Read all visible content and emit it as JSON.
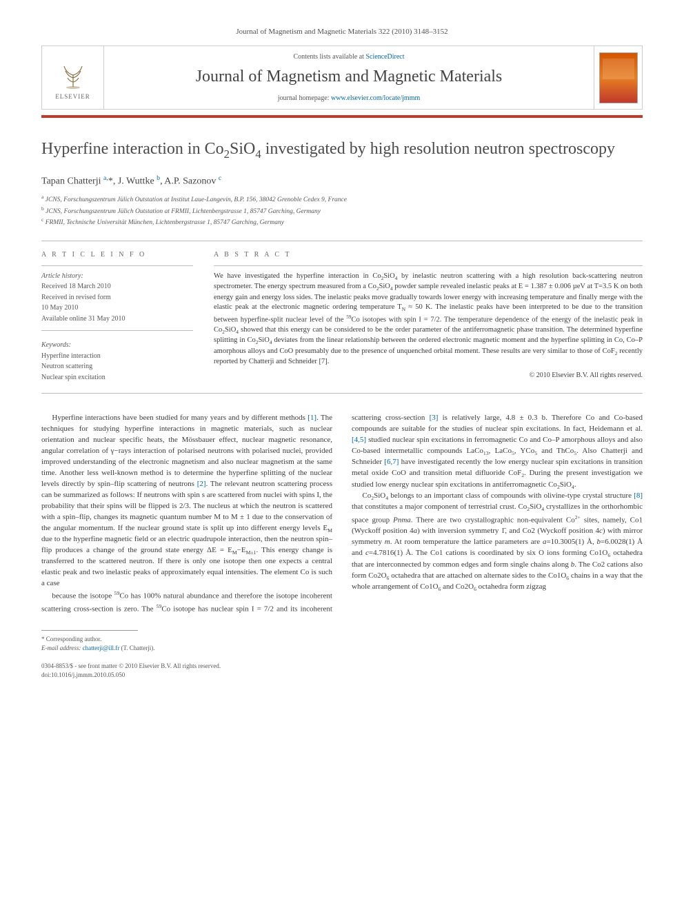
{
  "header": {
    "journal_ref": "Journal of Magnetism and Magnetic Materials 322 (2010) 3148–3152",
    "contents_prefix": "Contents lists available at ",
    "contents_link": "ScienceDirect",
    "journal_title": "Journal of Magnetism and Magnetic Materials",
    "homepage_prefix": "journal homepage: ",
    "homepage_url": "www.elsevier.com/locate/jmmm",
    "elsevier_label": "ELSEVIER"
  },
  "article": {
    "title_html": "Hyperfine interaction in Co<span class='sub'>2</span>SiO<span class='sub'>4</span> investigated by high resolution neutron spectroscopy",
    "authors_html": "Tapan Chatterji <span class='aff'>a,</span>*, J. Wuttke <span class='aff'>b</span>, A.P. Sazonov <span class='aff'>c</span>",
    "affiliations": [
      {
        "lbl": "a",
        "text": "JCNS, Forschungszentrum Jülich Outstation at Institut Laue-Langevin, B.P. 156, 38042 Grenoble Cedex 9, France"
      },
      {
        "lbl": "b",
        "text": "JCNS, Forschungszentrum Jülich Outstation at FRMII, Lichtenbergstrasse 1, 85747 Garching, Germany"
      },
      {
        "lbl": "c",
        "text": "FRMII, Technische Universität München, Lichtenbergstrasse 1, 85747 Garching, Germany"
      }
    ]
  },
  "meta": {
    "info_head": "A R T I C L E  I N F O",
    "history_head": "Article history:",
    "history": [
      "Received 18 March 2010",
      "Received in revised form",
      "10 May 2010",
      "Available online 31 May 2010"
    ],
    "keywords_head": "Keywords:",
    "keywords": [
      "Hyperfine interaction",
      "Neutron scattering",
      "Nuclear spin excitation"
    ]
  },
  "abstract": {
    "head": "A B S T R A C T",
    "text_html": "We have investigated the hyperfine interaction in Co<span class='sub'>2</span>SiO<span class='sub'>4</span> by inelastic neutron scattering with a high resolution back-scattering neutron spectrometer. The energy spectrum measured from a Co<span class='sub'>2</span>SiO<span class='sub'>4</span> powder sample revealed inelastic peaks at E = 1.387 ± 0.006 µeV at T=3.5 K on both energy gain and energy loss sides. The inelastic peaks move gradually towards lower energy with increasing temperature and finally merge with the elastic peak at the electronic magnetic ordering temperature T<span class='sub'>N</span> ≈ 50 K. The inelastic peaks have been interpreted to be due to the transition between hyperfine-split nuclear level of the <span class='sup'>59</span>Co isotopes with spin I = 7/2. The temperature dependence of the energy of the inelastic peak in Co<span class='sub'>2</span>SiO<span class='sub'>4</span> showed that this energy can be considered to be the order parameter of the antiferromagnetic phase transition. The determined hyperfine splitting in Co<span class='sub'>2</span>SiO<span class='sub'>4</span> deviates from the linear relationship between the ordered electronic magnetic moment and the hyperfine splitting in Co, Co–P amorphous alloys and CoO presumably due to the presence of unquenched orbital moment. These results are very similar to those of CoF<span class='sub'>2</span> recently reported by Chatterji and Schneider [7].",
    "copyright": "© 2010 Elsevier B.V. All rights reserved."
  },
  "body": {
    "p1_html": "Hyperfine interactions have been studied for many years and by different methods <a href='#'>[1]</a>. The techniques for studying hyperfine interactions in magnetic materials, such as nuclear orientation and nuclear specific heats, the Mössbauer effect, nuclear magnetic resonance, angular correlation of γ−rays interaction of polarised neutrons with polarised nuclei, provided improved understanding of the electronic magnetism and also nuclear magnetism at the same time. Another less well-known method is to determine the hyperfine splitting of the nuclear levels directly by spin–flip scattering of neutrons <a href='#'>[2]</a>. The relevant neutron scattering process can be summarized as follows: If neutrons with spin s are scattered from nuclei with spins I, the probability that their spins will be flipped is 2/3. The nucleus at which the neutron is scattered with a spin–flip, changes its magnetic quantum number M to M ± 1 due to the conservation of the angular momentum. If the nuclear ground state is split up into different energy levels E<span class='sub'>M</span> due to the hyperfine magnetic field or an electric quadrupole interaction, then the neutron spin–flip produces a change of the ground state energy ΔE = E<span class='sub'>M</span>−E<span class='sub'>M±1</span>. This energy change is transferred to the scattered neutron. If there is only one isotope then one expects a central elastic peak and two inelastic peaks of approximately equal intensities. The element Co is such a case",
    "p2_html": "because the isotope <span class='sup'>59</span>Co has 100% natural abundance and therefore the isotope incoherent scattering cross-section is zero. The <span class='sup'>59</span>Co isotope has nuclear spin I = 7/2 and its incoherent scattering cross-section <a href='#'>[3]</a> is relatively large, 4.8 ± 0.3 b. Therefore Co and Co-based compounds are suitable for the studies of nuclear spin excitations. In fact, Heidemann et al. <a href='#'>[4,5]</a> studied nuclear spin excitations in ferromagnetic Co and Co–P amorphous alloys and also Co-based intermetallic compounds LaCo<span class='sub'>13</span>, LaCo<span class='sub'>5</span>, YCo<span class='sub'>5</span> and ThCo<span class='sub'>5</span>. Also Chatterji and Schneider <a href='#'>[6,7]</a> have investigated recently the low energy nuclear spin excitations in transition metal oxide CoO and transition metal difluoride CoF<span class='sub'>2</span>. During the present investigation we studied low energy nuclear spin excitations in antiferromagnetic Co<span class='sub'>2</span>SiO<span class='sub'>4</span>.",
    "p3_html": "Co<span class='sub'>2</span>SiO<span class='sub'>4</span> belongs to an important class of compounds with olivine-type crystal structure <a href='#'>[8]</a> that constitutes a major component of terrestrial crust. Co<span class='sub'>2</span>SiO<span class='sub'>4</span> crystallizes in the orthorhombic space group <i>Pnma</i>. There are two crystallographic non-equivalent Co<span class='sup'>2+</span> sites, namely, Co1 (Wyckoff position 4<i>a</i>) with inversion symmetry 1̄, and Co2 (Wyckoff position 4<i>c</i>) with mirror symmetry <i>m</i>. At room temperature the lattice parameters are <i>a</i>=10.3005(1) Å, <i>b</i>=6.0028(1) Å and <i>c</i>=4.7816(1) Å. The Co1 cations is coordinated by six O ions forming Co1O<span class='sub'>6</span> octahedra that are interconnected by common edges and form single chains along <i>b</i>. The Co2 cations also form Co2O<span class='sub'>6</span> octahedra that are attached on alternate sides to the Co1O<span class='sub'>6</span> chains in a way that the whole arrangement of Co1O<span class='sub'>6</span> and Co2O<span class='sub'>6</span> octahedra form zigzag"
  },
  "footnotes": {
    "corr": "* Corresponding author.",
    "email_prefix": "E-mail address: ",
    "email": "chatterji@ill.fr",
    "email_who": " (T. Chatterji)."
  },
  "doi": {
    "line1": "0304-8853/$ - see front matter © 2010 Elsevier B.V. All rights reserved.",
    "line2": "doi:10.1016/j.jmmm.2010.05.050"
  },
  "colors": {
    "link": "#0066aa",
    "rule": "#c0392b",
    "text": "#3a3a3a",
    "muted": "#555555",
    "border": "#cccccc"
  },
  "typography": {
    "journal_title_pt": 24,
    "article_title_pt": 24,
    "authors_pt": 14,
    "body_pt": 11,
    "abstract_pt": 10.5,
    "meta_pt": 10,
    "footnote_pt": 9
  }
}
